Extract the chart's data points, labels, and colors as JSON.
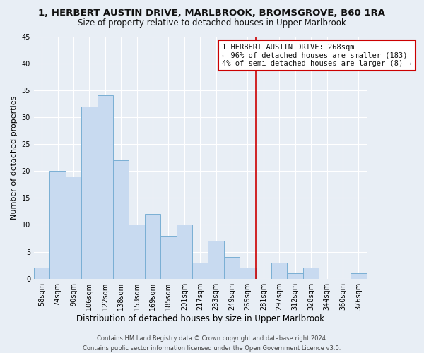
{
  "title": "1, HERBERT AUSTIN DRIVE, MARLBROOK, BROMSGROVE, B60 1RA",
  "subtitle": "Size of property relative to detached houses in Upper Marlbrook",
  "xlabel": "Distribution of detached houses by size in Upper Marlbrook",
  "ylabel": "Number of detached properties",
  "bin_labels": [
    "58sqm",
    "74sqm",
    "90sqm",
    "106sqm",
    "122sqm",
    "138sqm",
    "153sqm",
    "169sqm",
    "185sqm",
    "201sqm",
    "217sqm",
    "233sqm",
    "249sqm",
    "265sqm",
    "281sqm",
    "297sqm",
    "312sqm",
    "328sqm",
    "344sqm",
    "360sqm",
    "376sqm"
  ],
  "bar_values": [
    2,
    20,
    19,
    32,
    34,
    22,
    10,
    12,
    8,
    10,
    3,
    7,
    4,
    2,
    0,
    3,
    1,
    2,
    0,
    0,
    1
  ],
  "bar_color": "#c8daf0",
  "bar_edgecolor": "#7aafd4",
  "vline_x": 13.5,
  "vline_color": "#cc0000",
  "ylim": [
    0,
    45
  ],
  "yticks": [
    0,
    5,
    10,
    15,
    20,
    25,
    30,
    35,
    40,
    45
  ],
  "annotation_title": "1 HERBERT AUSTIN DRIVE: 268sqm",
  "annotation_line1": "← 96% of detached houses are smaller (183)",
  "annotation_line2": "4% of semi-detached houses are larger (8) →",
  "annotation_box_facecolor": "#ffffff",
  "annotation_border_color": "#cc0000",
  "footer_line1": "Contains HM Land Registry data © Crown copyright and database right 2024.",
  "footer_line2": "Contains public sector information licensed under the Open Government Licence v3.0.",
  "background_color": "#e8eef5",
  "grid_color": "#ffffff",
  "title_fontsize": 9.5,
  "subtitle_fontsize": 8.5,
  "ylabel_fontsize": 8,
  "xlabel_fontsize": 8.5,
  "tick_fontsize": 7,
  "annotation_fontsize": 7.5,
  "footer_fontsize": 6
}
